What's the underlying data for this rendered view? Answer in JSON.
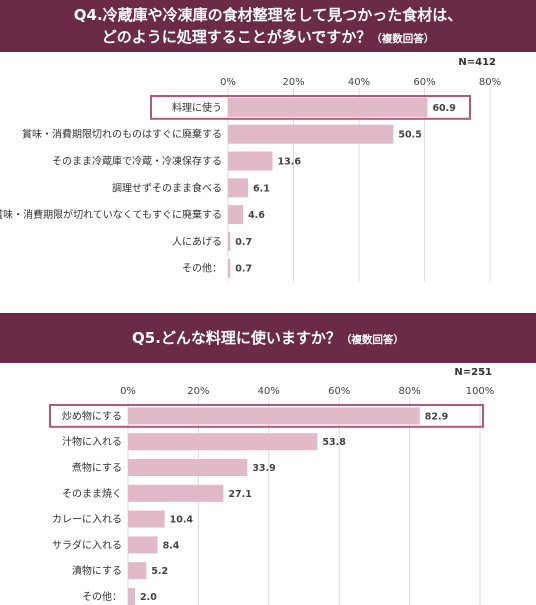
{
  "chart_data": [
    {
      "type": "bar",
      "orientation": "horizontal",
      "title": "Q4.冷蔵庫や冷凍庫の食材整理をして見つかった食材は、",
      "title_line2": "どのように処理することが多いですか？",
      "title_note": "（複数回答）",
      "n_label": "N=412",
      "categories": [
        "料理に使う",
        "賞味・消費期限切れのものはすぐに廃棄する",
        "そのまま冷蔵庫で冷蔵・冷凍保存する",
        "調理せずそのまま食べる",
        "賞味・消費期限が切れていなくてもすぐに廃棄する",
        "人にあげる",
        "その他："
      ],
      "values": [
        60.9,
        50.5,
        13.6,
        6.1,
        4.6,
        0.7,
        0.7
      ],
      "value_labels": [
        "60.9",
        "50.5",
        "13.6",
        "6.1",
        "4.6",
        "0.7",
        "0.7"
      ],
      "tick_labels": [
        "0%",
        "20%",
        "40%",
        "60%",
        "80%"
      ],
      "xlim": [
        0,
        80
      ],
      "highlight_index": 0,
      "grid": true,
      "bar_color": "#e2b9c9",
      "grid_color": "#dddddd",
      "highlight_color": "#b5567a"
    },
    {
      "type": "bar",
      "orientation": "horizontal",
      "title": "Q5.どんな料理に使いますか？",
      "title_note": "（複数回答）",
      "n_label": "N=251",
      "categories": [
        "炒め物にする",
        "汁物に入れる",
        "煮物にする",
        "そのまま焼く",
        "カレーに入れる",
        "サラダに入れる",
        "漬物にする",
        "その他："
      ],
      "values": [
        82.9,
        53.8,
        33.9,
        27.1,
        10.4,
        8.4,
        5.2,
        2.0
      ],
      "value_labels": [
        "82.9",
        "53.8",
        "33.9",
        "27.1",
        "10.4",
        "8.4",
        "5.2",
        "2.0"
      ],
      "tick_labels": [
        "0%",
        "20%",
        "40%",
        "60%",
        "80%",
        "100%"
      ],
      "xlim": [
        0,
        100
      ],
      "highlight_index": 0,
      "grid": true,
      "bar_color": "#e2b9c9",
      "grid_color": "#dddddd",
      "highlight_color": "#b5567a"
    }
  ]
}
